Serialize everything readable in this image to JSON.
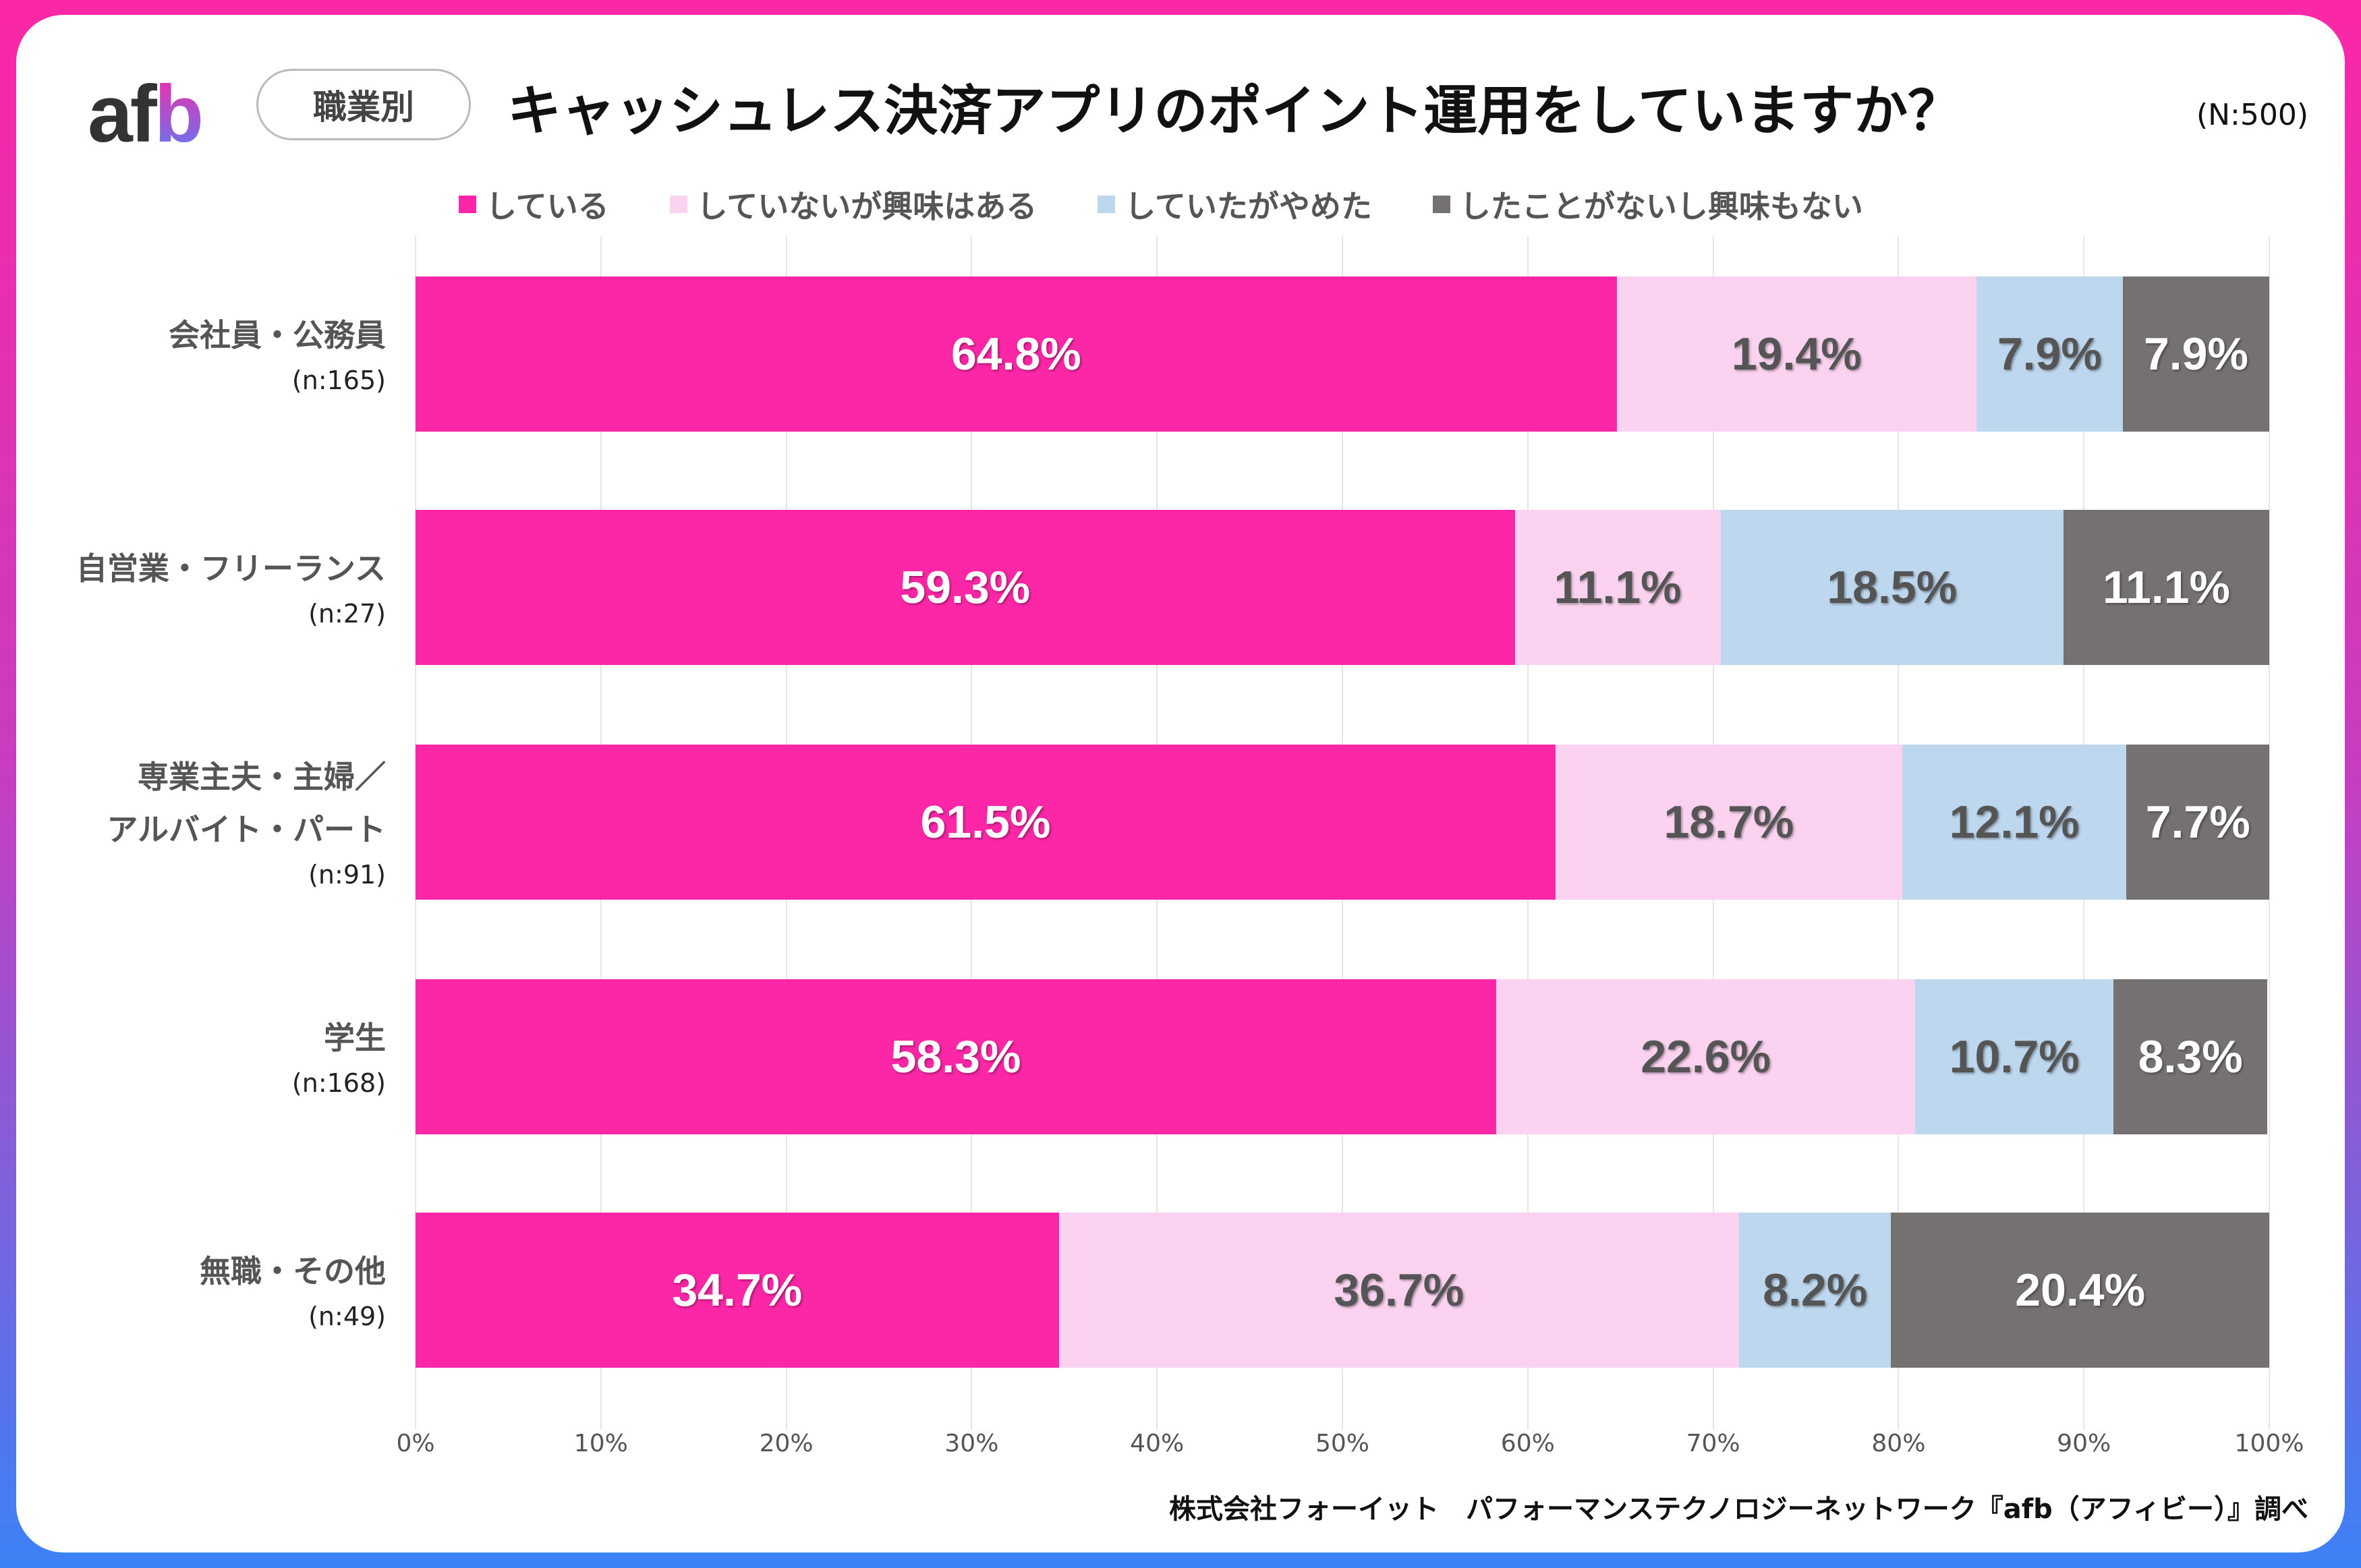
{
  "header": {
    "logo": "afb",
    "category_pill": "職業別",
    "title": "キャッシュレス決済アプリのポイント運用をしていますか？",
    "total_n": "(N:500)"
  },
  "footer": "株式会社フォーイット　パフォーマンステクノロジーネットワーク『afb（アフィビー）』調べ",
  "chart_data": {
    "type": "bar",
    "orientation": "horizontal-stacked-100",
    "title": "キャッシュレス決済アプリのポイント運用をしていますか？",
    "categories": [
      {
        "label": "会社員・公務員",
        "n": "(n:165)"
      },
      {
        "label": "自営業・フリーランス",
        "n": "(n:27)"
      },
      {
        "label": "専業主夫・主婦／\nアルバイト・パート",
        "label_lines": [
          "専業主夫・主婦／",
          "アルバイト・パート"
        ],
        "n": "(n:91)"
      },
      {
        "label": "学生",
        "n": "(n:168)"
      },
      {
        "label": "無職・その他",
        "n": "(n:49)"
      }
    ],
    "series": [
      {
        "name": "している",
        "color": "#fb27a6",
        "text_color": "#ffffff",
        "values": [
          64.8,
          59.3,
          61.5,
          58.3,
          34.7
        ]
      },
      {
        "name": "していないが興味はある",
        "color": "#fbd3f0",
        "text_color": "#555555",
        "values": [
          19.4,
          11.1,
          18.7,
          22.6,
          36.7
        ]
      },
      {
        "name": "していたがやめた",
        "color": "#bdd7ee",
        "text_color": "#555555",
        "values": [
          7.9,
          18.5,
          12.1,
          10.7,
          8.2
        ]
      },
      {
        "name": "したことがないし興味もない",
        "color": "#767171",
        "text_color": "#ffffff",
        "values": [
          7.9,
          11.1,
          7.7,
          8.3,
          20.4
        ]
      }
    ],
    "xlim": [
      0,
      100
    ],
    "xticks": [
      "0%",
      "10%",
      "20%",
      "30%",
      "40%",
      "50%",
      "60%",
      "70%",
      "80%",
      "90%",
      "100%"
    ],
    "legend_position": "top",
    "grid": true
  }
}
